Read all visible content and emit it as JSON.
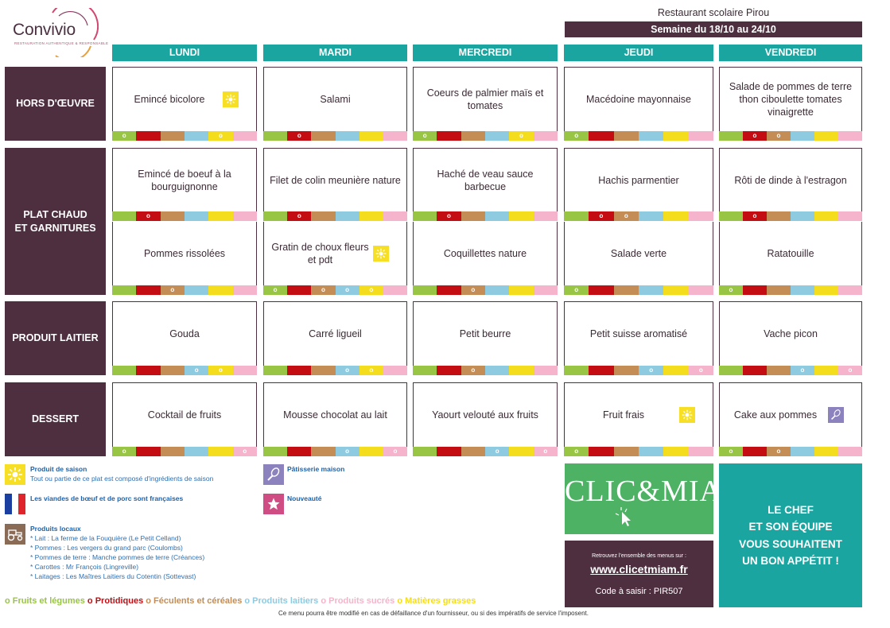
{
  "logo": {
    "name": "Convivio",
    "tagline": "RESTAURATION AUTHENTIQUE & RESPONSABLE"
  },
  "header": {
    "restaurant": "Restaurant scolaire Pirou",
    "week": "Semaine du 18/10 au 24/10"
  },
  "days": [
    "LUNDI",
    "MARDI",
    "MERCREDI",
    "JEUDI",
    "VENDREDI"
  ],
  "categories": [
    {
      "label": "HORS D'ŒUVRE"
    },
    {
      "label": "PLAT CHAUD\nET GARNITURES"
    },
    {
      "label": "PRODUIT LAITIER"
    },
    {
      "label": "DESSERT"
    }
  ],
  "menu": {
    "hors_doeuvre": [
      {
        "text": "Emincé bicolore",
        "icon": "sun-icon",
        "marks": [
          "o",
          "",
          "",
          "",
          "o",
          ""
        ]
      },
      {
        "text": "Salami",
        "icon": "",
        "marks": [
          "",
          "o",
          "",
          "",
          "",
          ""
        ]
      },
      {
        "text": "Coeurs de palmier maïs et tomates",
        "icon": "",
        "marks": [
          "o",
          "",
          "",
          "",
          "o",
          ""
        ]
      },
      {
        "text": "Macédoine mayonnaise",
        "icon": "",
        "marks": [
          "o",
          "",
          "",
          "",
          "",
          ""
        ]
      },
      {
        "text": "Salade de pommes de terre thon ciboulette tomates vinaigrette",
        "icon": "",
        "marks": [
          "",
          "o",
          "o",
          "",
          "",
          ""
        ]
      }
    ],
    "plat": [
      {
        "text": "Emincé de boeuf à la bourguignonne",
        "icon": "",
        "marks": [
          "",
          "o",
          "",
          "",
          "",
          ""
        ]
      },
      {
        "text": "Filet de colin meunière nature",
        "icon": "",
        "marks": [
          "",
          "o",
          "",
          "",
          "",
          ""
        ]
      },
      {
        "text": "Haché de veau sauce barbecue",
        "icon": "",
        "marks": [
          "",
          "o",
          "",
          "",
          "",
          ""
        ]
      },
      {
        "text": "Hachis parmentier",
        "icon": "",
        "marks": [
          "",
          "o",
          "o",
          "",
          "",
          ""
        ]
      },
      {
        "text": "Rôti de dinde à l'estragon",
        "icon": "",
        "marks": [
          "",
          "o",
          "",
          "",
          "",
          ""
        ]
      }
    ],
    "garniture": [
      {
        "text": "Pommes rissolées",
        "icon": "",
        "marks": [
          "",
          "",
          "o",
          "",
          "",
          ""
        ]
      },
      {
        "text": "Gratin de choux fleurs et pdt",
        "icon": "sun-icon",
        "marks": [
          "o",
          "",
          "o",
          "o",
          "o",
          ""
        ]
      },
      {
        "text": "Coquillettes nature",
        "icon": "",
        "marks": [
          "",
          "",
          "o",
          "",
          "",
          ""
        ]
      },
      {
        "text": "Salade verte",
        "icon": "",
        "marks": [
          "o",
          "",
          "",
          "",
          "",
          ""
        ]
      },
      {
        "text": "Ratatouille",
        "icon": "",
        "marks": [
          "o",
          "",
          "",
          "",
          "",
          ""
        ]
      }
    ],
    "laitier": [
      {
        "text": "Gouda",
        "icon": "",
        "marks": [
          "",
          "",
          "",
          "o",
          "o",
          ""
        ]
      },
      {
        "text": "Carré ligueil",
        "icon": "",
        "marks": [
          "",
          "",
          "",
          "o",
          "o",
          ""
        ]
      },
      {
        "text": "Petit beurre",
        "icon": "",
        "marks": [
          "",
          "",
          "o",
          "",
          "",
          ""
        ]
      },
      {
        "text": "Petit suisse aromatisé",
        "icon": "",
        "marks": [
          "",
          "",
          "",
          "o",
          "",
          "o"
        ]
      },
      {
        "text": "Vache picon",
        "icon": "",
        "marks": [
          "",
          "",
          "",
          "o",
          "",
          "o"
        ]
      }
    ],
    "dessert": [
      {
        "text": "Cocktail de fruits",
        "icon": "",
        "marks": [
          "o",
          "",
          "",
          "",
          "",
          "o"
        ]
      },
      {
        "text": "Mousse chocolat au lait",
        "icon": "",
        "marks": [
          "",
          "",
          "",
          "o",
          "",
          "o"
        ]
      },
      {
        "text": "Yaourt velouté aux fruits",
        "icon": "",
        "marks": [
          "",
          "",
          "",
          "o",
          "",
          "o"
        ]
      },
      {
        "text": "Fruit frais",
        "icon": "sun-icon",
        "marks": [
          "o",
          "",
          "",
          "",
          "",
          ""
        ]
      },
      {
        "text": "Cake aux pommes",
        "icon": "whisk-icon",
        "marks": [
          "o",
          "",
          "o",
          "",
          "",
          ""
        ]
      }
    ]
  },
  "legend": {
    "season_title": "Produit de saison",
    "season_desc": "Tout ou partie de ce plat est composé d'ingrédients de saison",
    "pastry": "Pâtisserie maison",
    "french_meat": "Les viandes de bœuf et de porc sont françaises",
    "new": "Nouveauté",
    "local_title": "Produits locaux",
    "local_items": [
      "* Lait : La ferme de la Fouquière (Le Petit Celland)",
      "* Pommes : Les vergers du grand parc (Coulombs)",
      "* Pommes de terre : Manche pommes de terre (Créances)",
      "* Carottes : Mr François (Lingreville)",
      "* Laitages : Les Maîtres Laitiers du Cotentin (Sottevast)"
    ]
  },
  "food_groups": [
    {
      "label": "o Fruits et légumes",
      "color": "#98c544"
    },
    {
      "label": "o Protidiques",
      "color": "#c40d12"
    },
    {
      "label": "o Féculents et céréales",
      "color": "#c48d55"
    },
    {
      "label": "o Produits laitiers",
      "color": "#8ecae0"
    },
    {
      "label": "o Produits sucrés",
      "color": "#f5b4cc"
    },
    {
      "label": "o Matières grasses",
      "color": "#f4dd1c"
    }
  ],
  "promo": {
    "clic": "CLIC&MIAM!",
    "retrouvez": "Retrouvez l'ensemble des menus sur :",
    "url": "www.clicetmiam.fr",
    "code": "Code à saisir : PIR507",
    "chef": "LE CHEF\nET SON ÉQUIPE\nVOUS SOUHAITENT\nUN BON APPÉTIT !"
  },
  "footer": "Ce menu pourra être modifié en cas de défaillance d'un fournisseur, ou si des impératifs de service l'imposent."
}
